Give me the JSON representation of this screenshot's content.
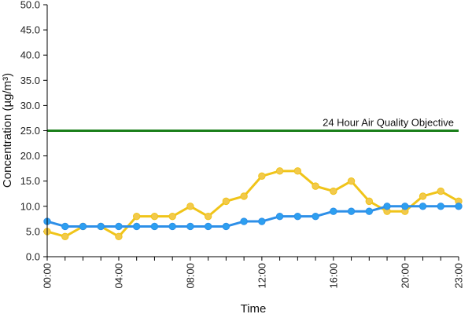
{
  "chart_data": {
    "type": "line",
    "title": "",
    "xlabel": "Time",
    "ylabel": "Concentration (µg/m³)",
    "ylim": [
      0,
      50
    ],
    "y_ticks": [
      "0.0",
      "5.0",
      "10.0",
      "15.0",
      "20.0",
      "25.0",
      "30.0",
      "35.0",
      "40.0",
      "45.0",
      "50.0"
    ],
    "x": [
      "00:00",
      "01:00",
      "02:00",
      "03:00",
      "04:00",
      "05:00",
      "06:00",
      "07:00",
      "08:00",
      "09:00",
      "10:00",
      "11:00",
      "12:00",
      "13:00",
      "14:00",
      "15:00",
      "16:00",
      "17:00",
      "18:00",
      "19:00",
      "20:00",
      "21:00",
      "22:00",
      "23:00"
    ],
    "x_tick_labels": [
      "00:00",
      "04:00",
      "08:00",
      "12:00",
      "16:00",
      "20:00",
      "23:00"
    ],
    "grid": false,
    "series": [
      {
        "color": "#f0c419",
        "marker_color": "#f2c94c",
        "values": [
          5,
          4,
          6,
          6,
          4,
          8,
          8,
          8,
          10,
          8,
          11,
          12,
          16,
          17,
          17,
          14,
          13,
          15,
          11,
          9,
          9,
          12,
          13,
          11
        ]
      },
      {
        "color": "#2d8fe8",
        "marker_color": "#2d9ff0",
        "values": [
          7,
          6,
          6,
          6,
          6,
          6,
          6,
          6,
          6,
          6,
          6,
          7,
          7,
          8,
          8,
          8,
          9,
          9,
          9,
          10,
          10,
          10,
          10,
          10
        ]
      }
    ],
    "reference_line": {
      "value": 25,
      "label": "24 Hour Air Quality Objective",
      "color": "#1a7f1a"
    }
  }
}
